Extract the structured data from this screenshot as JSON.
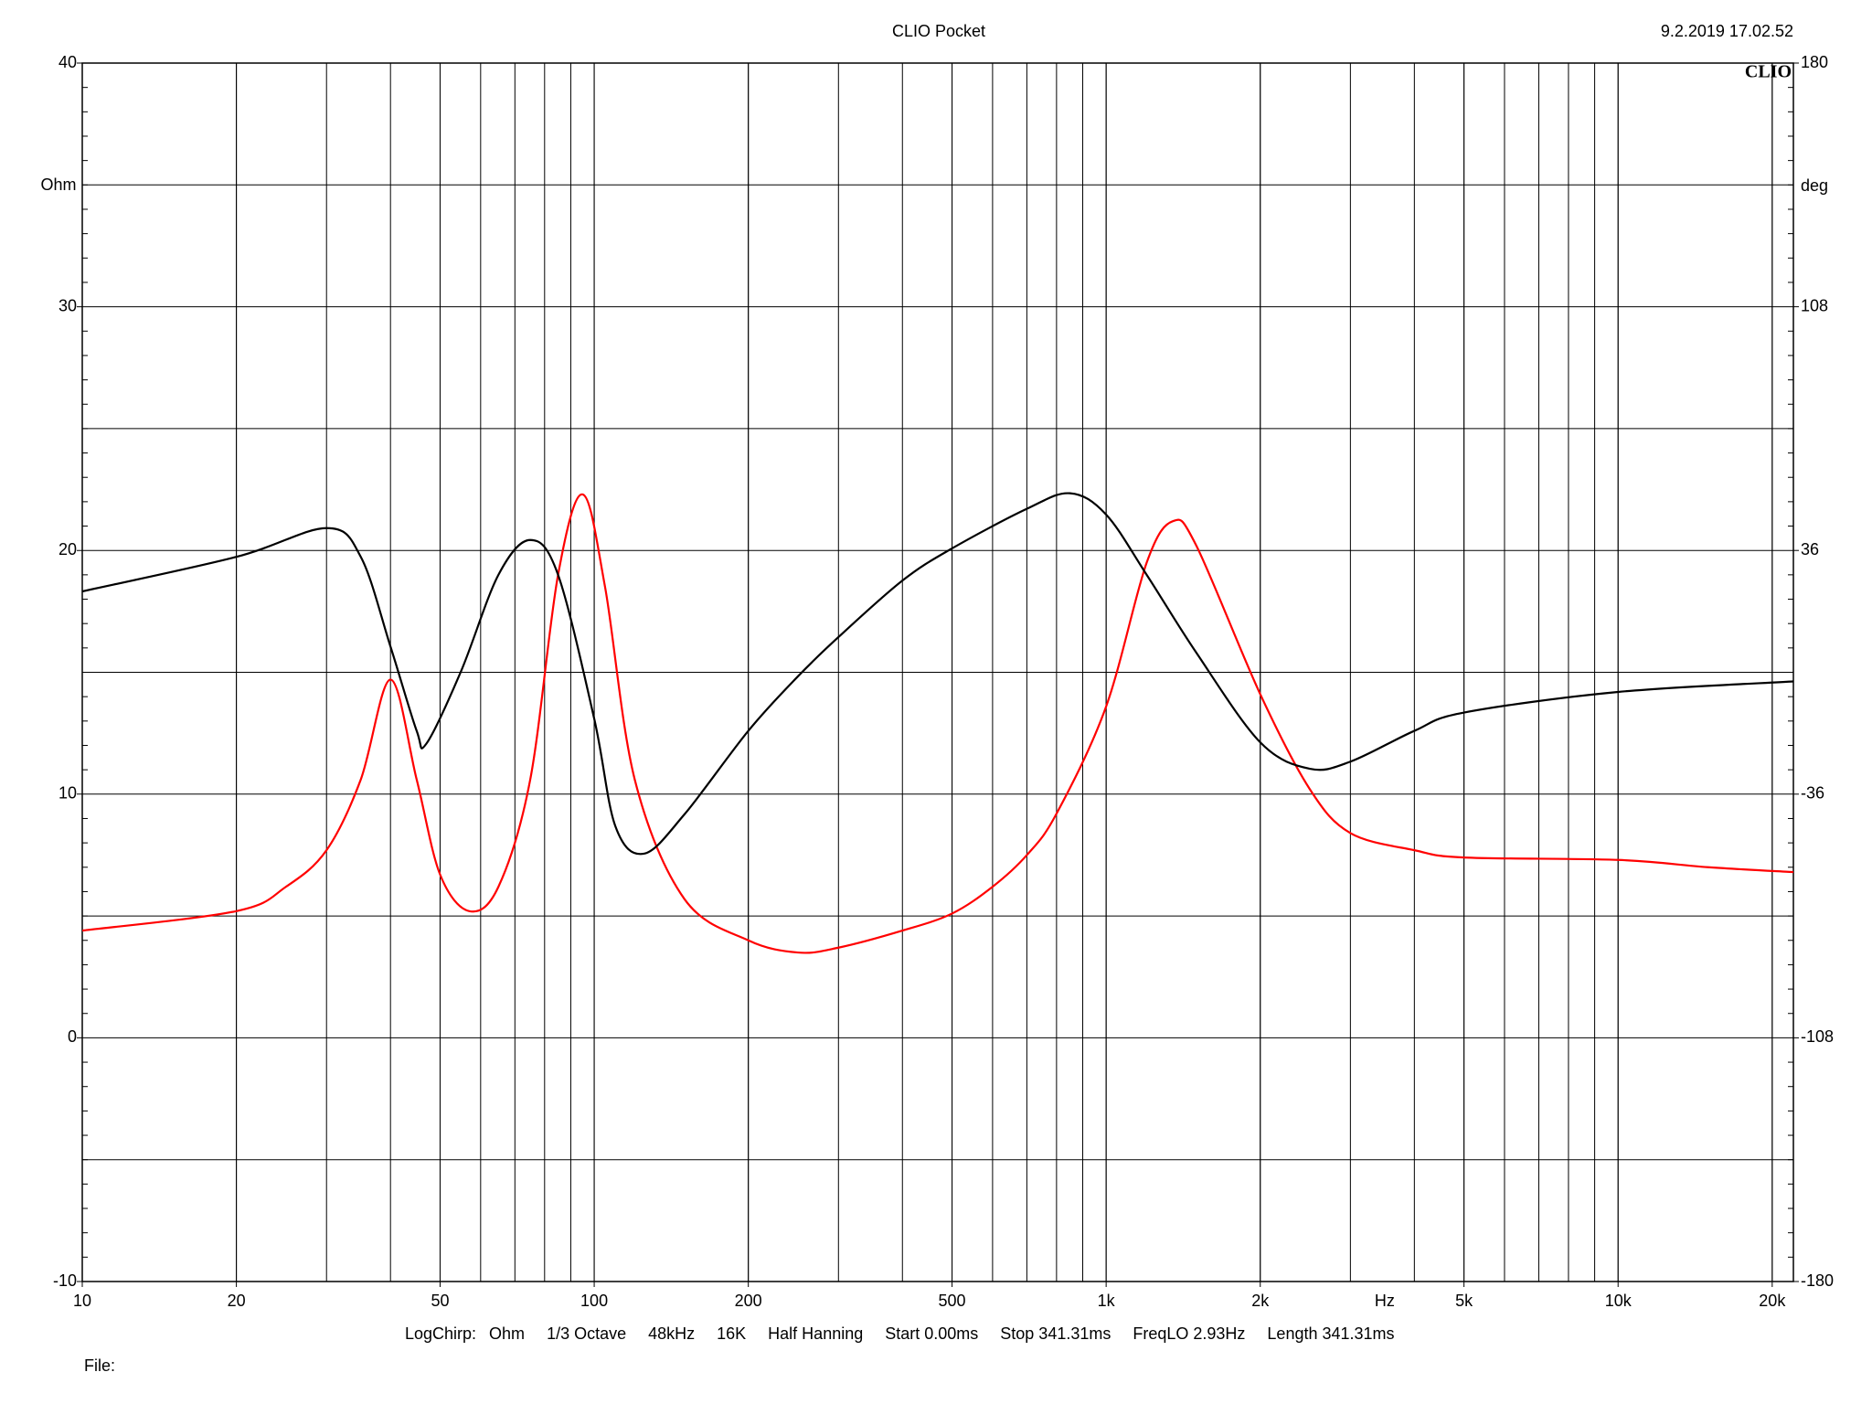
{
  "chart_data": {
    "type": "line",
    "title": "CLIO Pocket",
    "timestamp": "9.2.2019 17.02.52",
    "logo": "CLIO",
    "y_label": "Ohm",
    "y2_label": "deg",
    "x_label": "Hz",
    "footer": [
      "LogChirp:",
      "Ohm",
      "1/3 Octave",
      "48kHz",
      "16K",
      "Half Hanning",
      "Start 0.00ms",
      "Stop 341.31ms",
      "FreqLO 2.93Hz",
      "Length 341.31ms"
    ],
    "file_label": "File:",
    "x_scale": "log",
    "grid": true,
    "xlim": [
      10,
      22000
    ],
    "xticks": [
      10,
      20,
      50,
      100,
      200,
      500,
      {
        "value": 1000,
        "label": "1k"
      },
      {
        "value": 2000,
        "label": "2k"
      },
      {
        "value": 5000,
        "label": "5k"
      },
      {
        "value": 10000,
        "label": "10k"
      },
      {
        "value": 20000,
        "label": "20k"
      }
    ],
    "ylim": [
      -10,
      40
    ],
    "yticks": [
      -10,
      0,
      10,
      20,
      30,
      40
    ],
    "y2lim": [
      -180,
      180
    ],
    "y2ticks": [
      -180,
      -108,
      -36,
      36,
      108,
      180
    ],
    "series": [
      {
        "color": "#ff0000",
        "x": [
          10,
          20,
          25,
          30,
          35,
          40,
          45,
          50,
          57,
          65,
          75,
          85,
          95,
          105,
          120,
          150,
          200,
          250,
          300,
          400,
          500,
          600,
          700,
          800,
          1000,
          1200,
          1350,
          1500,
          2000,
          2500,
          3000,
          4000,
          5000,
          10000,
          15000,
          22000
        ],
        "values": [
          4.4,
          5.2,
          6.2,
          7.7,
          10.6,
          14.7,
          10.6,
          6.7,
          5.2,
          6.2,
          10.6,
          19.0,
          22.3,
          18.5,
          10.6,
          5.7,
          4.0,
          3.5,
          3.7,
          4.4,
          5.1,
          6.2,
          7.5,
          9.2,
          13.6,
          19.5,
          21.2,
          20.2,
          14.1,
          10.2,
          8.4,
          7.7,
          7.4,
          7.3,
          7.0,
          6.8
        ]
      },
      {
        "color": "#000000",
        "axis": "y2",
        "x": [
          10,
          20,
          30,
          35,
          40,
          45,
          47,
          55,
          65,
          75,
          85,
          100,
          110,
          125,
          150,
          200,
          250,
          300,
          400,
          500,
          700,
          850,
          1000,
          1200,
          1500,
          2000,
          2500,
          3000,
          4000,
          5000,
          10000,
          22000
        ],
        "values": [
          23.9,
          34.1,
          42.6,
          34.1,
          7.6,
          -17.3,
          -21.1,
          0.5,
          28.8,
          39.1,
          28.8,
          -13.7,
          -45.5,
          -53.6,
          -42.0,
          -17.3,
          -1.2,
          10.4,
          27.1,
          36.6,
          48.3,
          52.9,
          46.6,
          28.8,
          5.8,
          -20.7,
          -28.5,
          -26.4,
          -17.3,
          -11.9,
          -5.8,
          -2.7
        ]
      }
    ]
  }
}
